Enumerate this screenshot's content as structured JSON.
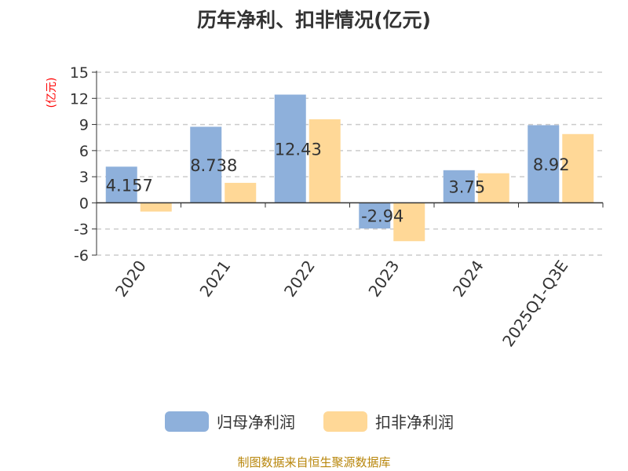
{
  "title": "历年净利、扣非情况(亿元)",
  "source": "制图数据来自恒生聚源数据库",
  "colors": {
    "series1": "#8eb0db",
    "series2": "#ffd897",
    "axis": "#333333",
    "grid": "#cccccc",
    "ylabel": "#ff0000",
    "source": "#b8860b"
  },
  "chart_data": {
    "type": "bar",
    "categories": [
      "2020",
      "2021",
      "2022",
      "2023",
      "2024",
      "2025Q1-Q3E"
    ],
    "series": [
      {
        "name": "归母净利润",
        "values": [
          4.157,
          8.738,
          12.43,
          -2.94,
          3.75,
          8.92
        ],
        "labels": [
          "4.157",
          "8.738",
          "12.43",
          "-2.94",
          "3.75",
          "8.92"
        ]
      },
      {
        "name": "扣非净利润",
        "values": [
          -1.0,
          2.3,
          9.6,
          -4.4,
          3.4,
          7.9
        ]
      }
    ],
    "ylabel": "(亿元)",
    "ylim": [
      -6,
      15
    ],
    "yticks": [
      15,
      12,
      9,
      6,
      3,
      0,
      -3,
      -6
    ],
    "grid": true,
    "legend": "bottom"
  }
}
